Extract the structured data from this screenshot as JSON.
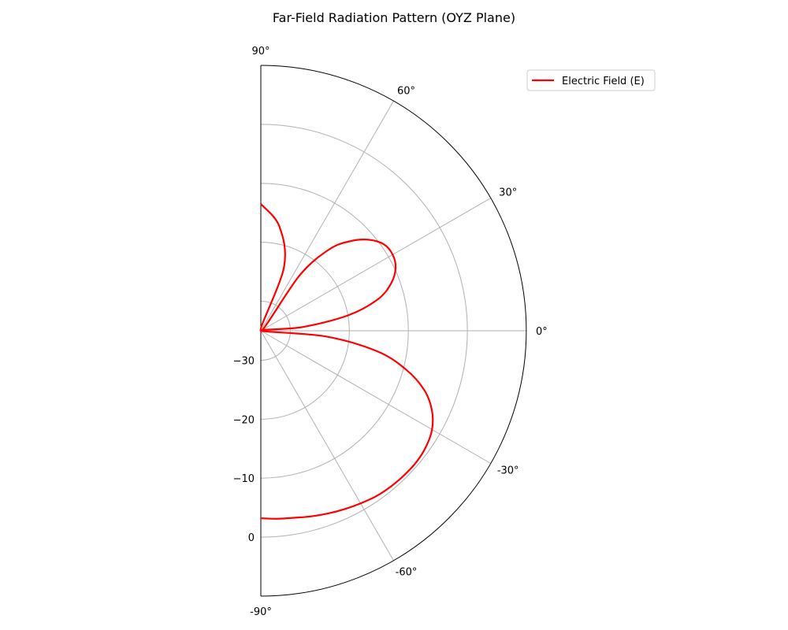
{
  "chart_data": {
    "type": "line",
    "projection": "polar-half",
    "title": "Far-Field Radiation Pattern (OYZ Plane)",
    "xlabel": "",
    "ylabel": "",
    "angle_range_deg": [
      -90,
      90
    ],
    "angle_ticks": [
      {
        "deg": 90,
        "label": "90°"
      },
      {
        "deg": 60,
        "label": "60°"
      },
      {
        "deg": 30,
        "label": "30°"
      },
      {
        "deg": 0,
        "label": "0°"
      },
      {
        "deg": -30,
        "label": "-30°"
      },
      {
        "deg": -60,
        "label": "-60°"
      },
      {
        "deg": -90,
        "label": "-90°"
      }
    ],
    "radial_range": [
      -35,
      10
    ],
    "radial_ticks": [
      {
        "value": -30,
        "label": "−30"
      },
      {
        "value": -20,
        "label": "−20"
      },
      {
        "value": -10,
        "label": "−10"
      },
      {
        "value": 0,
        "label": "0"
      }
    ],
    "grid": true,
    "legend_position": "top-right",
    "series": [
      {
        "name": "Electric Field (E)",
        "color": "#ff0000",
        "theta_deg": [
          90,
          80,
          70,
          60,
          55,
          50,
          45,
          40,
          35,
          30,
          25,
          20,
          15,
          10,
          5,
          0,
          -5,
          -10,
          -15,
          -20,
          -25,
          -30,
          -35,
          -40,
          -45,
          -50,
          -55,
          -60,
          -65,
          -70,
          -75,
          -80,
          -85,
          -90
        ],
        "r": [
          -13.5,
          -17,
          -23.5,
          -35,
          -23.5,
          -17,
          -13.5,
          -11,
          -9.5,
          -9.2,
          -9.8,
          -11.5,
          -14.5,
          -20,
          -28,
          -35,
          -24,
          -15,
          -9.5,
          -5.5,
          -3,
          -1.5,
          -0.8,
          -0.5,
          -0.5,
          -0.6,
          -0.8,
          -1.2,
          -1.6,
          -2.0,
          -2.4,
          -2.8,
          -3.0,
          -3.2
        ]
      }
    ]
  }
}
